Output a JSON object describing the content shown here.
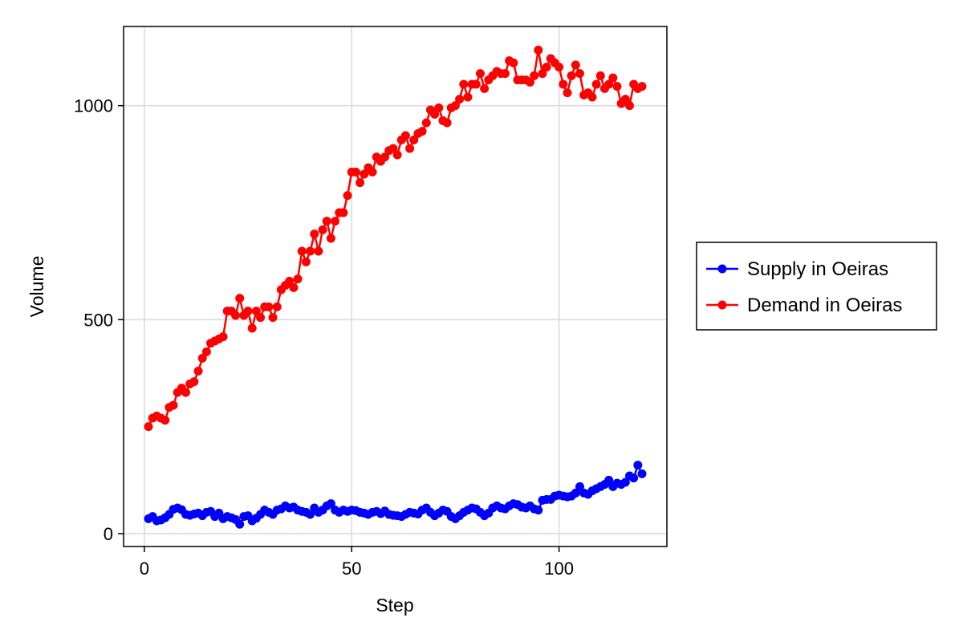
{
  "chart_data": {
    "type": "line",
    "xlabel": "Step",
    "ylabel": "Volume",
    "xlim": [
      -5,
      126
    ],
    "ylim": [
      -30,
      1185
    ],
    "xticks": [
      0,
      50,
      100
    ],
    "yticks": [
      0,
      500,
      1000
    ],
    "xtick_labels": [
      "0",
      "50",
      "100"
    ],
    "ytick_labels": [
      "0",
      "500",
      "1000"
    ],
    "grid": true,
    "legend_position": "right",
    "x": [
      1,
      2,
      3,
      4,
      5,
      6,
      7,
      8,
      9,
      10,
      11,
      12,
      13,
      14,
      15,
      16,
      17,
      18,
      19,
      20,
      21,
      22,
      23,
      24,
      25,
      26,
      27,
      28,
      29,
      30,
      31,
      32,
      33,
      34,
      35,
      36,
      37,
      38,
      39,
      40,
      41,
      42,
      43,
      44,
      45,
      46,
      47,
      48,
      49,
      50,
      51,
      52,
      53,
      54,
      55,
      56,
      57,
      58,
      59,
      60,
      61,
      62,
      63,
      64,
      65,
      66,
      67,
      68,
      69,
      70,
      71,
      72,
      73,
      74,
      75,
      76,
      77,
      78,
      79,
      80,
      81,
      82,
      83,
      84,
      85,
      86,
      87,
      88,
      89,
      90,
      91,
      92,
      93,
      94,
      95,
      96,
      97,
      98,
      99,
      100,
      101,
      102,
      103,
      104,
      105,
      106,
      107,
      108,
      109,
      110,
      111,
      112,
      113,
      114,
      115,
      116,
      117,
      118,
      119,
      120
    ],
    "series": [
      {
        "name": "Supply in Oeiras",
        "color": "#0000ff",
        "values": [
          35,
          40,
          30,
          32,
          37,
          45,
          57,
          60,
          56,
          45,
          43,
          46,
          48,
          42,
          50,
          52,
          40,
          48,
          35,
          40,
          37,
          33,
          22,
          40,
          42,
          30,
          36,
          45,
          55,
          50,
          45,
          55,
          58,
          65,
          60,
          62,
          55,
          52,
          50,
          45,
          60,
          50,
          55,
          65,
          70,
          55,
          50,
          55,
          52,
          55,
          54,
          50,
          48,
          45,
          50,
          52,
          47,
          53,
          45,
          43,
          42,
          40,
          45,
          50,
          48,
          46,
          55,
          60,
          50,
          42,
          48,
          55,
          52,
          40,
          35,
          42,
          50,
          55,
          60,
          58,
          50,
          42,
          48,
          60,
          65,
          60,
          58,
          65,
          70,
          68,
          62,
          60,
          65,
          58,
          55,
          78,
          80,
          80,
          88,
          90,
          88,
          86,
          88,
          95,
          110,
          95,
          92,
          100,
          105,
          110,
          115,
          125,
          110,
          118,
          115,
          120,
          135,
          130,
          160,
          140
        ]
      },
      {
        "name": "Demand in Oeiras",
        "color": "#ff0000",
        "values": [
          250,
          270,
          275,
          270,
          265,
          295,
          300,
          330,
          340,
          330,
          350,
          355,
          380,
          410,
          425,
          445,
          450,
          455,
          460,
          520,
          520,
          510,
          550,
          510,
          520,
          480,
          520,
          505,
          530,
          530,
          505,
          530,
          570,
          580,
          590,
          575,
          595,
          660,
          635,
          660,
          700,
          660,
          710,
          730,
          690,
          730,
          750,
          750,
          790,
          845,
          845,
          820,
          840,
          855,
          845,
          880,
          870,
          880,
          895,
          900,
          885,
          920,
          930,
          900,
          920,
          935,
          940,
          960,
          990,
          980,
          995,
          965,
          960,
          995,
          1000,
          1015,
          1050,
          1020,
          1050,
          1050,
          1075,
          1040,
          1060,
          1070,
          1080,
          1075,
          1075,
          1105,
          1100,
          1060,
          1060,
          1060,
          1055,
          1070,
          1130,
          1075,
          1090,
          1110,
          1100,
          1090,
          1050,
          1030,
          1070,
          1095,
          1075,
          1025,
          1030,
          1020,
          1050,
          1070,
          1040,
          1050,
          1065,
          1045,
          1005,
          1015,
          1000,
          1050,
          1040,
          1045
        ]
      }
    ]
  }
}
